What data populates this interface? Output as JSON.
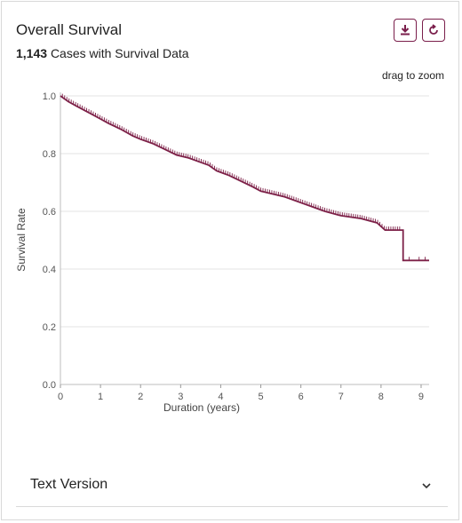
{
  "header": {
    "title": "Overall Survival",
    "case_count": "1,143",
    "case_suffix": "Cases with Survival Data",
    "zoom_hint": "drag to zoom"
  },
  "icons": {
    "download": "download-icon",
    "reset": "reset-icon"
  },
  "colors": {
    "accent": "#7a1e4b",
    "curve": "#7d2148",
    "grid": "#e3e3e3"
  },
  "chart_data": {
    "type": "line",
    "xlabel": "Duration (years)",
    "ylabel": "Survival Rate",
    "xlim": [
      0,
      9.2
    ],
    "ylim": [
      0,
      1
    ],
    "x_ticks": [
      0,
      1,
      2,
      3,
      4,
      5,
      6,
      7,
      8,
      9
    ],
    "y_ticks": [
      "0.0",
      "0.2",
      "0.4",
      "0.6",
      "0.8",
      "1.0"
    ],
    "grid": true,
    "series": [
      {
        "x": [
          0,
          0.1,
          0.2,
          0.4,
          0.6,
          0.8,
          1.0,
          1.2,
          1.5,
          1.8,
          2.0,
          2.3,
          2.6,
          2.9,
          3.2,
          3.5,
          3.7,
          3.9,
          4.2,
          4.5,
          4.8,
          5.0,
          5.3,
          5.6,
          6.0,
          6.3,
          6.6,
          7.0,
          7.5,
          7.9,
          8.1,
          8.55,
          8.55,
          9.2
        ],
        "y": [
          1.0,
          0.99,
          0.98,
          0.965,
          0.95,
          0.935,
          0.92,
          0.905,
          0.885,
          0.862,
          0.85,
          0.835,
          0.815,
          0.795,
          0.785,
          0.77,
          0.76,
          0.74,
          0.725,
          0.705,
          0.685,
          0.67,
          0.66,
          0.65,
          0.63,
          0.615,
          0.6,
          0.585,
          0.575,
          0.56,
          0.535,
          0.535,
          0.43,
          0.43
        ]
      }
    ]
  },
  "text_version": {
    "label": "Text Version",
    "chevron": "chevron-down-icon"
  }
}
